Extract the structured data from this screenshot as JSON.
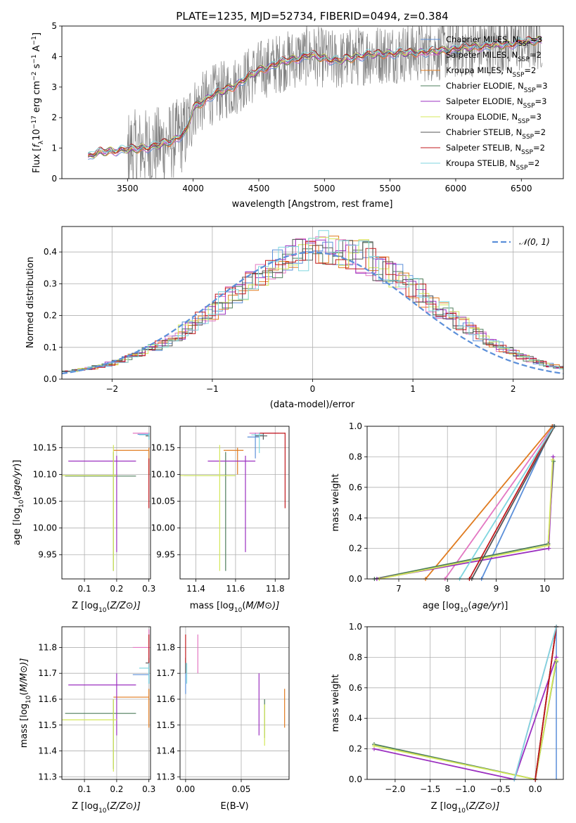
{
  "chart_data": [
    {
      "type": "line",
      "id": "spectrum",
      "title": "PLATE=1235, MJD=52734, FIBERID=0494, z=0.384",
      "xlabel": "wavelength [Angstrom, rest frame]",
      "ylabel_parts": [
        "Flux [",
        "f",
        "λ",
        "10",
        "−17",
        " erg cm",
        "−2",
        " s",
        "−1",
        " A",
        "−1",
        "]"
      ],
      "xlim": [
        3000,
        6820
      ],
      "ylim": [
        0,
        5
      ],
      "xticks": [
        3500,
        4000,
        4500,
        5000,
        5500,
        6000,
        6500
      ],
      "yticks": [
        0,
        1,
        2,
        3,
        4,
        5
      ],
      "grid": false,
      "legend_position": "right",
      "data_color": "#808080",
      "data_x_range": [
        3200,
        6660
      ],
      "noisy_above": 3500,
      "series": [
        {
          "name_main": "Chabrier MILES, N",
          "name_sub": "SSP",
          "name_tail": "=3",
          "color": "#5b8fd9"
        },
        {
          "name_main": "Salpeter MILES, N",
          "name_sub": "SSP",
          "name_tail": "=2",
          "color": "#e377c2"
        },
        {
          "name_main": "Kroupa MILES, N",
          "name_sub": "SSP",
          "name_tail": "=2",
          "color": "#e07b1f"
        },
        {
          "name_main": "Chabrier ELODIE, N",
          "name_sub": "SSP",
          "name_tail": "=3",
          "color": "#4e7d5b"
        },
        {
          "name_main": "Salpeter ELODIE, N",
          "name_sub": "SSP",
          "name_tail": "=3",
          "color": "#9b30c0"
        },
        {
          "name_main": "Kroupa ELODIE, N",
          "name_sub": "SSP",
          "name_tail": "=3",
          "color": "#d4e85a"
        },
        {
          "name_main": "Chabrier STELIB, N",
          "name_sub": "SSP",
          "name_tail": "=2",
          "color": "#555555"
        },
        {
          "name_main": "Salpeter STELIB, N",
          "name_sub": "SSP",
          "name_tail": "=2",
          "color": "#c0181c"
        },
        {
          "name_main": "Kroupa STELIB, N",
          "name_sub": "SSP",
          "name_tail": "=2",
          "color": "#7fd6df"
        }
      ],
      "continuum": [
        [
          3200,
          0.72
        ],
        [
          3300,
          0.88
        ],
        [
          3500,
          0.95
        ],
        [
          3700,
          1.05
        ],
        [
          3850,
          1.25
        ],
        [
          3950,
          1.55
        ],
        [
          4000,
          2.3
        ],
        [
          4150,
          2.75
        ],
        [
          4300,
          3.0
        ],
        [
          4500,
          3.55
        ],
        [
          4700,
          3.85
        ],
        [
          4900,
          4.05
        ],
        [
          5100,
          3.85
        ],
        [
          5300,
          4.05
        ],
        [
          5500,
          4.1
        ],
        [
          5800,
          4.15
        ],
        [
          6100,
          4.3
        ],
        [
          6400,
          4.4
        ],
        [
          6660,
          4.55
        ]
      ]
    },
    {
      "type": "line",
      "id": "residuals",
      "xlabel": "(data-model)/error",
      "ylabel": "Normed distribution",
      "xlim": [
        -2.5,
        2.5
      ],
      "ylim": [
        0,
        0.48
      ],
      "xticks": [
        -2,
        -1,
        0,
        1,
        2
      ],
      "yticks": [
        0.0,
        0.1,
        0.2,
        0.3,
        0.4
      ],
      "grid": true,
      "legend_position": "top-right",
      "legend_label": "𝒩(0, 1)",
      "gauss_color": "#5b8fd9",
      "bin_width": 0.1,
      "hist_colors": [
        "#5b8fd9",
        "#e377c2",
        "#e07b1f",
        "#4e7d5b",
        "#9b30c0",
        "#d4e85a",
        "#555555",
        "#c0181c",
        "#7fd6df"
      ]
    },
    {
      "type": "scatter",
      "id": "age-vs-z",
      "xlabel_parts": [
        "Z [log",
        "10",
        "(",
        "Z/Z",
        "⊙",
        ")]"
      ],
      "ylabel_parts": [
        "age  [log",
        "10",
        "(",
        "age/yr",
        ")]"
      ],
      "xlim": [
        0.03,
        0.305
      ],
      "ylim": [
        9.905,
        10.19
      ],
      "xticks": [
        0.1,
        0.2,
        0.3
      ],
      "yticks": [
        9.95,
        10.0,
        10.05,
        10.1,
        10.15
      ],
      "grid": true,
      "points": [
        {
          "x": 0.3,
          "y": 10.175,
          "xlo": 0.265,
          "xhi": 0.3,
          "ylo": 10.17,
          "yhi": 10.178,
          "color": "#5b8fd9"
        },
        {
          "x": 0.3,
          "y": 10.177,
          "xlo": 0.25,
          "xhi": 0.3,
          "ylo": 10.175,
          "yhi": 10.178,
          "color": "#e377c2"
        },
        {
          "x": 0.3,
          "y": 10.145,
          "xlo": 0.19,
          "xhi": 0.3,
          "ylo": 10.1,
          "yhi": 10.15,
          "color": "#e07b1f"
        },
        {
          "x": 0.19,
          "y": 10.097,
          "xlo": 0.04,
          "xhi": 0.26,
          "ylo": 9.92,
          "yhi": 10.142,
          "color": "#4e7d5b"
        },
        {
          "x": 0.2,
          "y": 10.125,
          "xlo": 0.05,
          "xhi": 0.26,
          "ylo": 9.955,
          "yhi": 10.135,
          "color": "#9b30c0"
        },
        {
          "x": 0.19,
          "y": 10.098,
          "xlo": 0.03,
          "xhi": 0.2,
          "ylo": 9.92,
          "yhi": 10.155,
          "color": "#d4e85a"
        },
        {
          "x": 0.3,
          "y": 10.172,
          "xlo": 0.29,
          "xhi": 0.3,
          "ylo": 10.17,
          "yhi": 10.177,
          "color": "#555555"
        },
        {
          "x": 0.3,
          "y": 10.1,
          "xlo": 0.3,
          "xhi": 0.3,
          "ylo": 10.037,
          "yhi": 10.13,
          "color": "#c0181c"
        },
        {
          "x": 0.3,
          "y": 10.174,
          "xlo": 0.27,
          "xhi": 0.3,
          "ylo": 10.165,
          "yhi": 10.178,
          "color": "#7fd6df"
        }
      ]
    },
    {
      "type": "scatter",
      "id": "age-vs-mass",
      "xlabel_parts": [
        "mass [log",
        "10",
        "(",
        "M/M",
        "⊙",
        ")]"
      ],
      "xlim": [
        11.32,
        11.87
      ],
      "ylim": [
        9.905,
        10.19
      ],
      "xticks": [
        11.4,
        11.6,
        11.8
      ],
      "yticks": [
        9.95,
        10.0,
        10.05,
        10.1,
        10.15
      ],
      "grid": true,
      "points": [
        {
          "x": 11.7,
          "y": 10.17,
          "xlo": 11.66,
          "xhi": 11.72,
          "ylo": 10.13,
          "yhi": 10.178,
          "color": "#5b8fd9"
        },
        {
          "x": 11.8,
          "y": 10.177,
          "xlo": 11.67,
          "xhi": 11.82,
          "ylo": 10.176,
          "yhi": 10.178,
          "color": "#e377c2"
        },
        {
          "x": 11.61,
          "y": 10.145,
          "xlo": 11.54,
          "xhi": 11.64,
          "ylo": 10.1,
          "yhi": 10.15,
          "color": "#e07b1f"
        },
        {
          "x": 11.55,
          "y": 10.098,
          "xlo": 11.34,
          "xhi": 11.6,
          "ylo": 9.92,
          "yhi": 10.142,
          "color": "#4e7d5b"
        },
        {
          "x": 11.65,
          "y": 10.125,
          "xlo": 11.46,
          "xhi": 11.7,
          "ylo": 9.955,
          "yhi": 10.135,
          "color": "#9b30c0"
        },
        {
          "x": 11.52,
          "y": 10.098,
          "xlo": 11.32,
          "xhi": 11.6,
          "ylo": 9.92,
          "yhi": 10.155,
          "color": "#d4e85a"
        },
        {
          "x": 11.74,
          "y": 10.172,
          "xlo": 11.7,
          "xhi": 11.76,
          "ylo": 10.165,
          "yhi": 10.177,
          "color": "#555555"
        },
        {
          "x": 11.85,
          "y": 10.177,
          "xlo": 11.72,
          "xhi": 11.85,
          "ylo": 10.037,
          "yhi": 10.178,
          "color": "#c0181c"
        },
        {
          "x": 11.72,
          "y": 10.174,
          "xlo": 11.68,
          "xhi": 11.74,
          "ylo": 10.14,
          "yhi": 10.178,
          "color": "#7fd6df"
        }
      ]
    },
    {
      "type": "line",
      "id": "massweight-vs-age",
      "xlabel_parts": [
        "age  [log",
        "10",
        "(",
        "age/yr",
        ")]"
      ],
      "ylabel": "mass weight",
      "xlim": [
        6.35,
        10.38
      ],
      "ylim": [
        0,
        1
      ],
      "xticks": [
        7,
        8,
        9,
        10
      ],
      "yticks": [
        0.0,
        0.2,
        0.4,
        0.6,
        0.8,
        1.0
      ],
      "grid": true,
      "series": [
        {
          "color": "#5b8fd9",
          "x": [
            8.7,
            10.17
          ],
          "y": [
            0.0,
            1.0
          ]
        },
        {
          "color": "#e377c2",
          "x": [
            7.95,
            10.17
          ],
          "y": [
            0.0,
            1.0
          ]
        },
        {
          "color": "#e07b1f",
          "x": [
            7.55,
            10.15
          ],
          "y": [
            0.0,
            1.0
          ]
        },
        {
          "color": "#4e7d5b",
          "x": [
            6.5,
            10.07,
            10.18
          ],
          "y": [
            0.0,
            0.23,
            0.77
          ]
        },
        {
          "color": "#9b30c0",
          "x": [
            6.55,
            10.08,
            10.17
          ],
          "y": [
            0.0,
            0.2,
            0.8
          ]
        },
        {
          "color": "#d4e85a",
          "x": [
            6.6,
            10.07,
            10.16
          ],
          "y": [
            0.0,
            0.22,
            0.78
          ]
        },
        {
          "color": "#555555",
          "x": [
            8.5,
            10.2
          ],
          "y": [
            0.0,
            1.0
          ]
        },
        {
          "color": "#c0181c",
          "x": [
            8.45,
            10.17
          ],
          "y": [
            0.0,
            1.0
          ]
        },
        {
          "color": "#7fd6df",
          "x": [
            8.25,
            10.18
          ],
          "y": [
            0.0,
            1.0
          ]
        }
      ]
    },
    {
      "type": "scatter",
      "id": "mass-vs-z",
      "xlabel_parts": [
        "Z [log",
        "10",
        "(",
        "Z/Z",
        "⊙",
        ")]"
      ],
      "ylabel_parts": [
        "mass [log",
        "10",
        "(",
        "M/M",
        "⊙",
        ")]"
      ],
      "xlim": [
        0.03,
        0.305
      ],
      "ylim": [
        11.29,
        11.88
      ],
      "xticks": [
        0.1,
        0.2,
        0.3
      ],
      "yticks": [
        11.3,
        11.4,
        11.5,
        11.6,
        11.7,
        11.8
      ],
      "grid": true,
      "points": [
        {
          "x": 0.3,
          "y": 11.695,
          "xlo": 0.25,
          "xhi": 0.3,
          "ylo": 11.66,
          "yhi": 11.74,
          "color": "#5b8fd9"
        },
        {
          "x": 0.3,
          "y": 11.8,
          "xlo": 0.25,
          "xhi": 0.3,
          "ylo": 11.76,
          "yhi": 11.87,
          "color": "#e377c2"
        },
        {
          "x": 0.3,
          "y": 11.608,
          "xlo": 0.19,
          "xhi": 0.3,
          "ylo": 11.49,
          "yhi": 11.64,
          "color": "#e07b1f"
        },
        {
          "x": 0.19,
          "y": 11.545,
          "xlo": 0.04,
          "xhi": 0.26,
          "ylo": 11.33,
          "yhi": 11.6,
          "color": "#4e7d5b"
        },
        {
          "x": 0.2,
          "y": 11.655,
          "xlo": 0.05,
          "xhi": 0.26,
          "ylo": 11.46,
          "yhi": 11.7,
          "color": "#9b30c0"
        },
        {
          "x": 0.19,
          "y": 11.52,
          "xlo": 0.03,
          "xhi": 0.2,
          "ylo": 11.32,
          "yhi": 11.6,
          "color": "#d4e85a"
        },
        {
          "x": 0.3,
          "y": 11.74,
          "xlo": 0.29,
          "xhi": 0.3,
          "ylo": 11.7,
          "yhi": 11.76,
          "color": "#555555"
        },
        {
          "x": 0.3,
          "y": 11.8,
          "xlo": 0.3,
          "xhi": 0.3,
          "ylo": 11.72,
          "yhi": 11.85,
          "color": "#c0181c"
        },
        {
          "x": 0.3,
          "y": 11.72,
          "xlo": 0.27,
          "xhi": 0.3,
          "ylo": 11.66,
          "yhi": 11.74,
          "color": "#7fd6df"
        }
      ]
    },
    {
      "type": "scatter",
      "id": "mass-vs-ebv",
      "xlabel": "E(B-V)",
      "xlim": [
        -0.005,
        0.093
      ],
      "ylim": [
        11.29,
        11.88
      ],
      "xticks": [
        0.0,
        0.05
      ],
      "tick_labels": [
        "0.00",
        "0.05"
      ],
      "yticks": [
        11.3,
        11.4,
        11.5,
        11.6,
        11.7,
        11.8
      ],
      "grid": true,
      "points": [
        {
          "x": 0.0,
          "y": 11.695,
          "ylo": 11.62,
          "yhi": 11.74,
          "color": "#5b8fd9"
        },
        {
          "x": 0.011,
          "y": 11.8,
          "ylo": 11.7,
          "yhi": 11.85,
          "color": "#e377c2"
        },
        {
          "x": 0.089,
          "y": 11.608,
          "ylo": 11.49,
          "yhi": 11.64,
          "color": "#e07b1f"
        },
        {
          "x": 0.071,
          "y": 11.545,
          "ylo": 11.45,
          "yhi": 11.6,
          "color": "#4e7d5b"
        },
        {
          "x": 0.066,
          "y": 11.655,
          "ylo": 11.46,
          "yhi": 11.7,
          "color": "#9b30c0"
        },
        {
          "x": 0.071,
          "y": 11.52,
          "ylo": 11.42,
          "yhi": 11.58,
          "color": "#d4e85a"
        },
        {
          "x": 0.0,
          "y": 11.74,
          "ylo": 11.7,
          "yhi": 11.76,
          "color": "#555555"
        },
        {
          "x": 0.0,
          "y": 11.8,
          "ylo": 11.74,
          "yhi": 11.85,
          "color": "#c0181c"
        },
        {
          "x": 0.001,
          "y": 11.72,
          "ylo": 11.66,
          "yhi": 11.74,
          "color": "#7fd6df"
        }
      ]
    },
    {
      "type": "line",
      "id": "massweight-vs-z",
      "xlabel_parts": [
        "Z [log",
        "10",
        "(",
        "Z/Z",
        "⊙",
        ")]"
      ],
      "ylabel": "mass weight",
      "xlim": [
        -2.4,
        0.4
      ],
      "ylim": [
        0,
        1
      ],
      "xticks": [
        -2.0,
        -1.5,
        -1.0,
        -0.5,
        0.0
      ],
      "yticks": [
        0.0,
        0.2,
        0.4,
        0.6,
        0.8,
        1.0
      ],
      "grid": true,
      "series": [
        {
          "color": "#5b8fd9",
          "x": [
            0.0,
            0.3
          ],
          "y": [
            0.0,
            1.0
          ],
          "errbar_x": 0.3
        },
        {
          "color": "#e377c2",
          "x": [
            -0.3,
            0.3
          ],
          "y": [
            0.0,
            1.0
          ]
        },
        {
          "color": "#e07b1f",
          "x": [
            0.0,
            0.3
          ],
          "y": [
            0.0,
            1.0
          ]
        },
        {
          "color": "#4e7d5b",
          "x": [
            -2.3,
            0.0,
            0.3
          ],
          "y": [
            0.23,
            0.0,
            0.77
          ]
        },
        {
          "color": "#9b30c0",
          "x": [
            -2.3,
            -0.3,
            0.3
          ],
          "y": [
            0.2,
            0.0,
            0.8
          ]
        },
        {
          "color": "#d4e85a",
          "x": [
            -2.3,
            0.0,
            0.3
          ],
          "y": [
            0.22,
            0.0,
            0.78
          ]
        },
        {
          "color": "#555555",
          "x": [
            0.0,
            0.3
          ],
          "y": [
            0.0,
            1.0
          ]
        },
        {
          "color": "#c0181c",
          "x": [
            0.0,
            0.3
          ],
          "y": [
            0.0,
            1.0
          ]
        },
        {
          "color": "#7fd6df",
          "x": [
            -0.3,
            0.3
          ],
          "y": [
            0.0,
            1.0
          ]
        }
      ]
    }
  ]
}
